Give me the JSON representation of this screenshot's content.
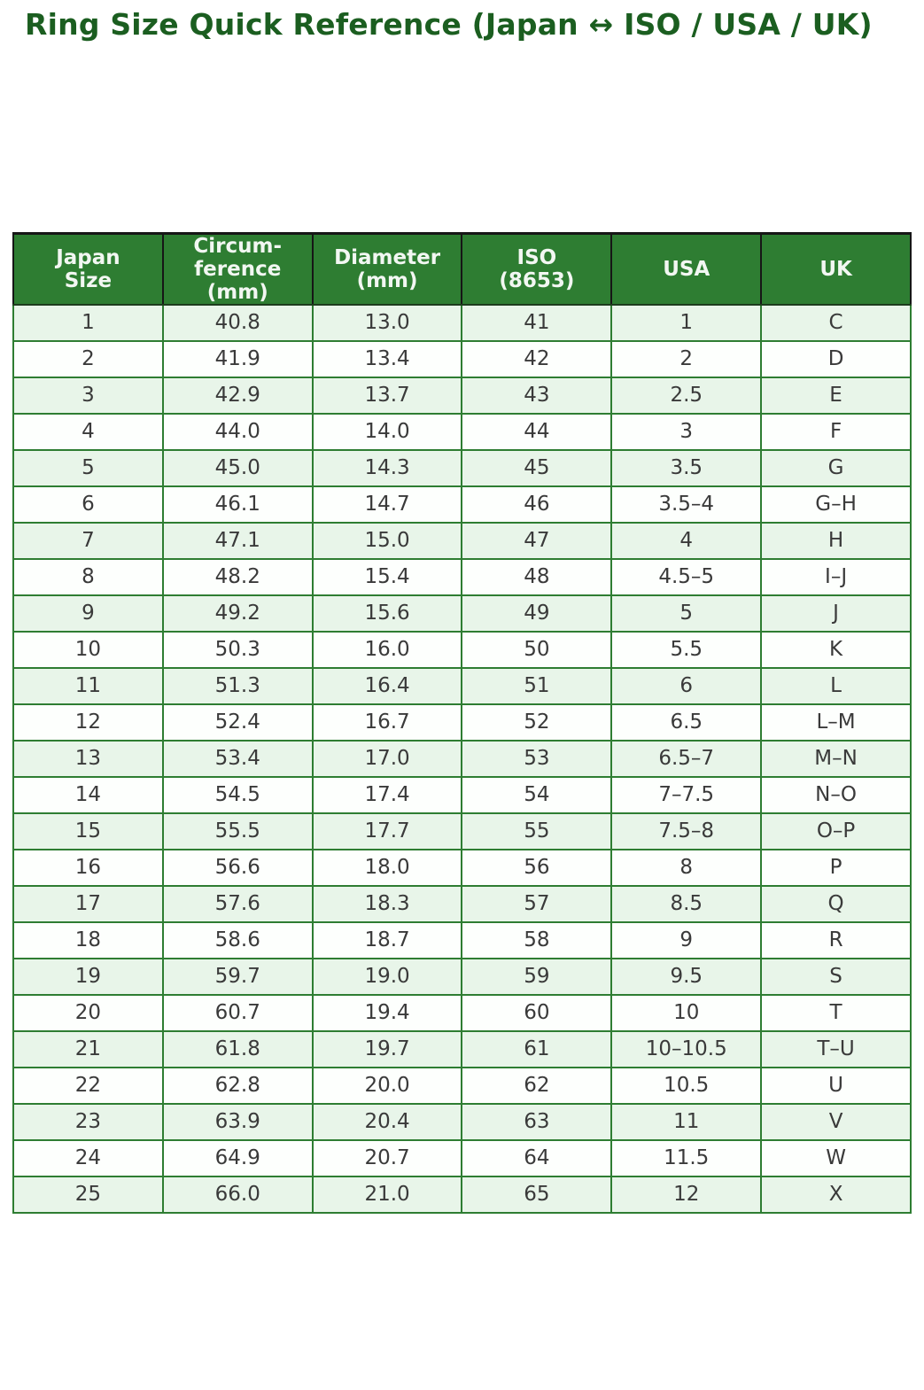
{
  "page": {
    "title": "Ring Size Quick Reference (Japan ↔ ISO / USA / UK)"
  },
  "colors": {
    "title_text": "#1b5e20",
    "header_bg": "#2e7d32",
    "header_text": "#f2f7f2",
    "header_divider": "#161616",
    "grid_line": "#2e7d32",
    "row_odd_bg": "#e8f5e9",
    "row_even_bg": "#fdfffd",
    "cell_text": "#3a3a3a"
  },
  "chart_data": {
    "type": "table",
    "title": "Ring Size Quick Reference (Japan ↔ ISO / USA / UK)",
    "columns": [
      "Japan Size",
      "Circumference (mm)",
      "Diameter (mm)",
      "ISO (8653)",
      "USA",
      "UK"
    ],
    "column_headers_multiline": [
      "Japan\nSize",
      "Circum-\nference\n(mm)",
      "Diameter\n(mm)",
      "ISO\n(8653)",
      "USA",
      "UK"
    ],
    "column_keys": [
      "japan-size",
      "circumference-mm",
      "diameter-mm",
      "iso-8653",
      "usa",
      "uk"
    ],
    "rows": [
      [
        "1",
        "40.8",
        "13.0",
        "41",
        "1",
        "C"
      ],
      [
        "2",
        "41.9",
        "13.4",
        "42",
        "2",
        "D"
      ],
      [
        "3",
        "42.9",
        "13.7",
        "43",
        "2.5",
        "E"
      ],
      [
        "4",
        "44.0",
        "14.0",
        "44",
        "3",
        "F"
      ],
      [
        "5",
        "45.0",
        "14.3",
        "45",
        "3.5",
        "G"
      ],
      [
        "6",
        "46.1",
        "14.7",
        "46",
        "3.5–4",
        "G–H"
      ],
      [
        "7",
        "47.1",
        "15.0",
        "47",
        "4",
        "H"
      ],
      [
        "8",
        "48.2",
        "15.4",
        "48",
        "4.5–5",
        "I–J"
      ],
      [
        "9",
        "49.2",
        "15.6",
        "49",
        "5",
        "J"
      ],
      [
        "10",
        "50.3",
        "16.0",
        "50",
        "5.5",
        "K"
      ],
      [
        "11",
        "51.3",
        "16.4",
        "51",
        "6",
        "L"
      ],
      [
        "12",
        "52.4",
        "16.7",
        "52",
        "6.5",
        "L–M"
      ],
      [
        "13",
        "53.4",
        "17.0",
        "53",
        "6.5–7",
        "M–N"
      ],
      [
        "14",
        "54.5",
        "17.4",
        "54",
        "7–7.5",
        "N–O"
      ],
      [
        "15",
        "55.5",
        "17.7",
        "55",
        "7.5–8",
        "O–P"
      ],
      [
        "16",
        "56.6",
        "18.0",
        "56",
        "8",
        "P"
      ],
      [
        "17",
        "57.6",
        "18.3",
        "57",
        "8.5",
        "Q"
      ],
      [
        "18",
        "58.6",
        "18.7",
        "58",
        "9",
        "R"
      ],
      [
        "19",
        "59.7",
        "19.0",
        "59",
        "9.5",
        "S"
      ],
      [
        "20",
        "60.7",
        "19.4",
        "60",
        "10",
        "T"
      ],
      [
        "21",
        "61.8",
        "19.7",
        "61",
        "10–10.5",
        "T–U"
      ],
      [
        "22",
        "62.8",
        "20.0",
        "62",
        "10.5",
        "U"
      ],
      [
        "23",
        "63.9",
        "20.4",
        "63",
        "11",
        "V"
      ],
      [
        "24",
        "64.9",
        "20.7",
        "64",
        "11.5",
        "W"
      ],
      [
        "25",
        "66.0",
        "21.0",
        "65",
        "12",
        "X"
      ]
    ]
  }
}
